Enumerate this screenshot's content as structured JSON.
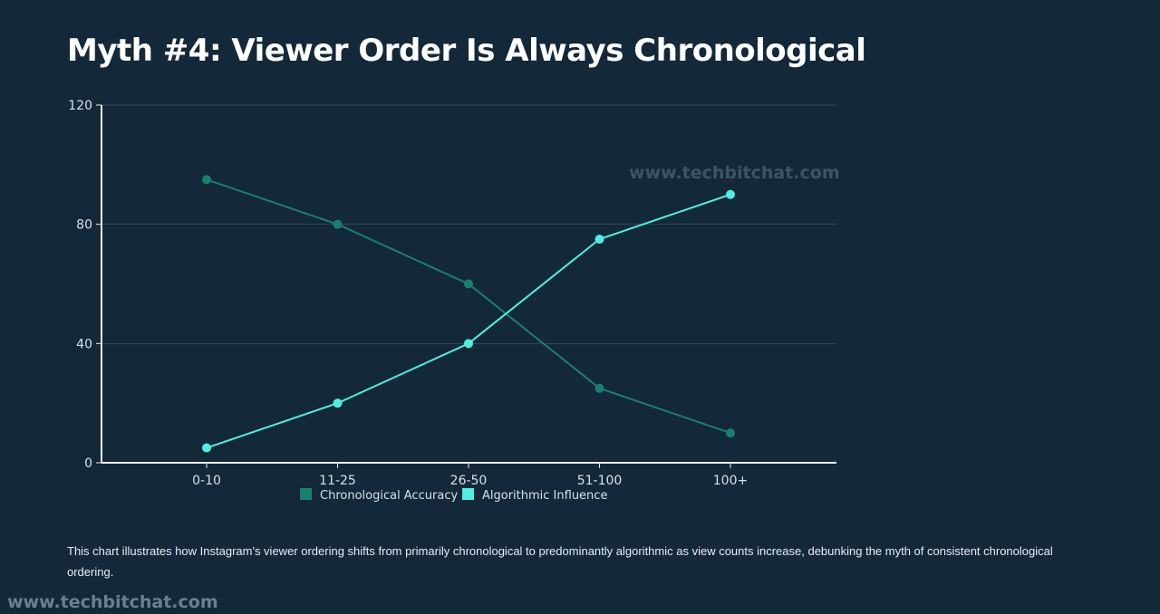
{
  "page": {
    "title": "Myth #4: Viewer Order Is Always Chronological",
    "caption": "This chart illustrates how Instagram's viewer ordering shifts from primarily chronological to predominantly algorithmic as view counts increase, debunking the myth of consistent chronological ordering.",
    "watermark_chart": "www.techbitchat.com",
    "watermark_bottom": "www.techbitchat.com"
  },
  "chart_data": {
    "type": "line",
    "title": "Myth #4: Viewer Order Is Always Chronological",
    "xlabel": "",
    "ylabel": "",
    "categories": [
      "0-10",
      "11-25",
      "26-50",
      "51-100",
      "100+"
    ],
    "ylim": [
      0,
      120
    ],
    "yticks": [
      0,
      40,
      80,
      120
    ],
    "grid": true,
    "legend_position": "bottom",
    "series": [
      {
        "name": "Chronological Accuracy",
        "values": [
          95,
          80,
          60,
          25,
          10
        ],
        "color": "#19806f"
      },
      {
        "name": "Algorithmic Influence",
        "values": [
          5,
          20,
          40,
          75,
          90
        ],
        "color": "#4eeee0"
      }
    ],
    "colors": {
      "grid": "#33495a",
      "axis": "#e8eef2"
    }
  }
}
